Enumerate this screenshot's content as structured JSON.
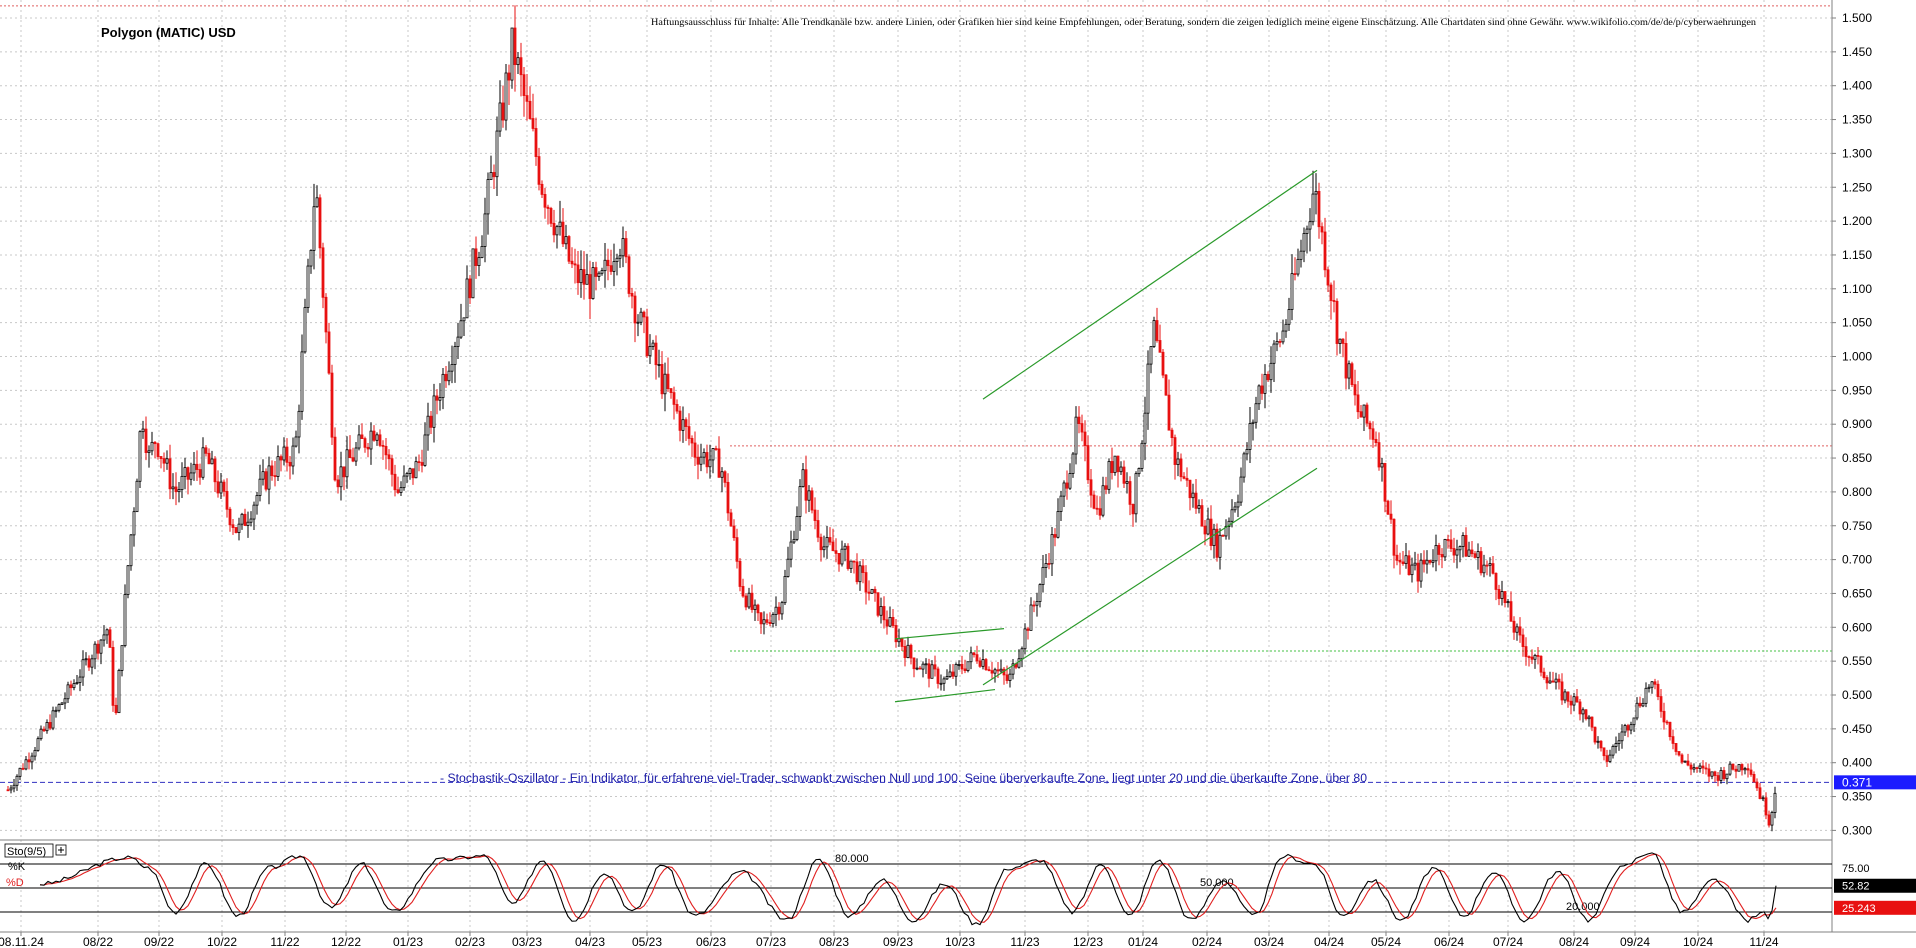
{
  "chart_data": {
    "type": "candlestick",
    "title": "Polygon (MATIC) USD",
    "disclaimer": "Haftungsausschluss für Inhalte: Alle Trendkanäle bzw. andere Linien, oder Grafiken hier sind keine Empfehlungen, oder Beratung, sondern die zeigen lediglich meine eigene Einschätzung. Alle Chartdaten sind ohne Gewähr.  www.wikifolio.com/de/de/p/cyberwaehrungen",
    "annotation": "- Stochastik-Oszillator - Ein Indikator, für erfahrene viel-Trader, schwankt zwischen Null und 100. Seine überverkaufte Zone, liegt unter 20 und die überkaufte Zone, über 80",
    "ylim": [
      0.27,
      1.525
    ],
    "y_ticks": [
      "1.500",
      "1.450",
      "1.400",
      "1.350",
      "1.300",
      "1.250",
      "1.200",
      "1.150",
      "1.100",
      "1.050",
      "1.000",
      "0.950",
      "0.900",
      "0.850",
      "0.800",
      "0.750",
      "0.700",
      "0.650",
      "0.600",
      "0.550",
      "0.500",
      "0.450",
      "0.400",
      "0.350",
      "0.300"
    ],
    "x_ticks": [
      "08.11.24",
      "08/22",
      "09/22",
      "10/22",
      "11/22",
      "12/22",
      "01/23",
      "02/23",
      "03/23",
      "04/23",
      "05/23",
      "06/23",
      "07/23",
      "08/23",
      "09/23",
      "10/23",
      "11/23",
      "12/23",
      "01/24",
      "02/24",
      "03/24",
      "04/24",
      "05/24",
      "06/24",
      "07/24",
      "08/24",
      "09/24",
      "10/24",
      "11/24"
    ],
    "last_price": "0.371",
    "price_path": [
      [
        "08/22",
        0.36
      ],
      [
        "08/22",
        0.6
      ],
      [
        "08/22",
        0.45
      ],
      [
        "08/22",
        0.58
      ],
      [
        "08/22",
        0.7
      ],
      [
        "08/22",
        0.8
      ],
      [
        "08/22",
        0.92
      ],
      [
        "08/22",
        0.85
      ],
      [
        "08/22",
        0.88
      ],
      [
        "09/22",
        0.8
      ],
      [
        "09/22",
        0.85
      ],
      [
        "10/22",
        0.74
      ],
      [
        "10/22",
        0.83
      ],
      [
        "11/22",
        0.86
      ],
      [
        "11/22",
        1.26
      ],
      [
        "11/22",
        0.82
      ],
      [
        "12/22",
        0.86
      ],
      [
        "12/22",
        0.9
      ],
      [
        "12/22",
        0.8
      ],
      [
        "01/23",
        0.84
      ],
      [
        "01/23",
        0.95
      ],
      [
        "01/23",
        1.05
      ],
      [
        "02/23",
        1.2
      ],
      [
        "02/23",
        1.46
      ],
      [
        "03/23",
        1.25
      ],
      [
        "03/23",
        1.12
      ],
      [
        "04/23",
        1.1
      ],
      [
        "04/23",
        1.18
      ],
      [
        "04/23",
        1.06
      ],
      [
        "05/23",
        0.96
      ],
      [
        "05/23",
        0.86
      ],
      [
        "06/23",
        0.84
      ],
      [
        "06/23",
        0.66
      ],
      [
        "06/23",
        0.6
      ],
      [
        "07/23",
        0.64
      ],
      [
        "07/23",
        0.82
      ],
      [
        "07/23",
        0.72
      ],
      [
        "08/23",
        0.7
      ],
      [
        "08/23",
        0.62
      ],
      [
        "09/23",
        0.55
      ],
      [
        "09/23",
        0.52
      ],
      [
        "10/23",
        0.56
      ],
      [
        "10/23",
        0.52
      ],
      [
        "11/23",
        0.64
      ],
      [
        "11/23",
        0.75
      ],
      [
        "11/23",
        0.9
      ],
      [
        "12/23",
        0.77
      ],
      [
        "12/23",
        0.86
      ],
      [
        "12/23",
        0.78
      ],
      [
        "01/24",
        1.04
      ],
      [
        "01/24",
        0.85
      ],
      [
        "01/24",
        0.78
      ],
      [
        "02/24",
        0.72
      ],
      [
        "02/24",
        0.8
      ],
      [
        "02/24",
        0.95
      ],
      [
        "03/24",
        1.04
      ],
      [
        "03/24",
        1.25
      ],
      [
        "04/24",
        1.03
      ],
      [
        "04/24",
        0.92
      ],
      [
        "04/24",
        0.88
      ],
      [
        "05/24",
        0.7
      ],
      [
        "05/24",
        0.68
      ],
      [
        "05/24",
        0.72
      ],
      [
        "06/24",
        0.72
      ],
      [
        "06/24",
        0.68
      ],
      [
        "07/24",
        0.58
      ],
      [
        "07/24",
        0.54
      ],
      [
        "07/24",
        0.5
      ],
      [
        "08/24",
        0.48
      ],
      [
        "08/24",
        0.4
      ],
      [
        "08/24",
        0.45
      ],
      [
        "09/24",
        0.52
      ],
      [
        "09/24",
        0.4
      ],
      [
        "10/24",
        0.38
      ],
      [
        "10/24",
        0.4
      ],
      [
        "11/24",
        0.33
      ],
      [
        "11/24",
        0.31
      ],
      [
        "11/24",
        0.371
      ]
    ],
    "horizontal_lines": [
      {
        "price": 1.518,
        "style": "dotted",
        "color": "#e06060"
      },
      {
        "price": 0.868,
        "style": "dotted",
        "color": "#e06060"
      },
      {
        "price": 0.565,
        "style": "dotted",
        "color": "#44c044"
      },
      {
        "price": 0.371,
        "style": "dashed",
        "color": "#3030c0"
      }
    ],
    "trendlines": [
      {
        "from": [
          "11/23",
          0.937
        ],
        "to": [
          "04/24",
          1.275
        ],
        "color": "#2a9a2a"
      },
      {
        "from": [
          "11/23",
          0.515
        ],
        "to": [
          "04/24",
          0.835
        ],
        "color": "#2a9a2a"
      },
      {
        "from": [
          "09/23",
          0.583
        ],
        "to": [
          "11/23",
          0.598
        ],
        "color": "#2a9a2a"
      },
      {
        "from": [
          "09/23",
          0.49
        ],
        "to": [
          "10/23",
          0.508
        ],
        "color": "#2a9a2a"
      }
    ],
    "indicator": {
      "name": "Sto(9/5)",
      "series": [
        {
          "name": "%K",
          "color": "#000000"
        },
        {
          "name": "%D",
          "color": "#e02020"
        }
      ],
      "levels": [
        "80.000",
        "50.000",
        "20.000"
      ],
      "ylim": [
        0,
        100
      ],
      "axis_ticks": [
        "75.00",
        "50.00",
        "25.00"
      ],
      "last_k": "52.82",
      "last_d": "25.243",
      "k_path": [
        [
          "08/22",
          55
        ],
        [
          "08/22",
          88
        ],
        [
          "08/22",
          75
        ],
        [
          "09/22",
          20
        ],
        [
          "09/22",
          80
        ],
        [
          "10/22",
          15
        ],
        [
          "10/22",
          75
        ],
        [
          "11/22",
          90
        ],
        [
          "11/22",
          25
        ],
        [
          "12/22",
          80
        ],
        [
          "12/22",
          20
        ],
        [
          "01/23",
          85
        ],
        [
          "02/23",
          90
        ],
        [
          "02/23",
          30
        ],
        [
          "03/23",
          85
        ],
        [
          "03/23",
          10
        ],
        [
          "04/23",
          70
        ],
        [
          "04/23",
          20
        ],
        [
          "05/23",
          80
        ],
        [
          "05/23",
          15
        ],
        [
          "06/23",
          70
        ],
        [
          "07/23",
          10
        ],
        [
          "07/23",
          85
        ],
        [
          "08/23",
          15
        ],
        [
          "08/23",
          60
        ],
        [
          "09/23",
          10
        ],
        [
          "09/23",
          55
        ],
        [
          "10/23",
          5
        ],
        [
          "10/23",
          75
        ],
        [
          "11/23",
          85
        ],
        [
          "11/23",
          20
        ],
        [
          "12/23",
          80
        ],
        [
          "12/23",
          15
        ],
        [
          "01/24",
          85
        ],
        [
          "01/24",
          10
        ],
        [
          "02/24",
          60
        ],
        [
          "02/24",
          15
        ],
        [
          "03/24",
          90
        ],
        [
          "03/24",
          80
        ],
        [
          "04/24",
          15
        ],
        [
          "04/24",
          60
        ],
        [
          "05/24",
          10
        ],
        [
          "05/24",
          75
        ],
        [
          "06/24",
          15
        ],
        [
          "06/24",
          70
        ],
        [
          "07/24",
          10
        ],
        [
          "07/24",
          70
        ],
        [
          "08/24",
          10
        ],
        [
          "08/24",
          75
        ],
        [
          "09/24",
          95
        ],
        [
          "09/24",
          20
        ],
        [
          "10/24",
          60
        ],
        [
          "10/24",
          10
        ],
        [
          "11/24",
          20
        ],
        [
          "11/24",
          8
        ],
        [
          "11/24",
          52.82
        ]
      ]
    }
  }
}
